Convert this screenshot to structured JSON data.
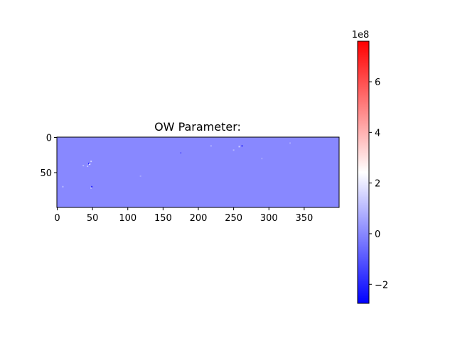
{
  "chart_data": {
    "type": "heatmap",
    "title": "OW Parameter:",
    "xlabel": "",
    "ylabel": "",
    "image_shape": [
      100,
      400
    ],
    "xlim": [
      -0.5,
      399.5
    ],
    "ylim": [
      99.5,
      -0.5
    ],
    "x_ticks": [
      0,
      50,
      100,
      150,
      200,
      250,
      300,
      350
    ],
    "x_tick_labels": [
      "0",
      "50",
      "100",
      "150",
      "200",
      "250",
      "300",
      "350"
    ],
    "y_ticks": [
      0,
      50
    ],
    "y_tick_labels": [
      "0",
      "50"
    ],
    "background_value": 0,
    "colormap": "bwr",
    "colorbar": {
      "vmin": -2.75,
      "vmax": 7.6,
      "scale_label": "1e8",
      "ticks": [
        -2,
        0,
        2,
        4,
        6
      ],
      "tick_labels": [
        "−2",
        "0",
        "2",
        "4",
        "6"
      ],
      "colors": [
        "#0000ff",
        "#ffffff",
        "#ff0000"
      ]
    },
    "features": [
      {
        "x": 45,
        "y": 37,
        "value": -2.5
      },
      {
        "x": 46,
        "y": 38,
        "value": 2.0
      },
      {
        "x": 48,
        "y": 34,
        "value": 1.5
      },
      {
        "x": 43,
        "y": 41,
        "value": 1.2
      },
      {
        "x": 49,
        "y": 70,
        "value": -2.0
      },
      {
        "x": 48,
        "y": 72,
        "value": 1.0
      },
      {
        "x": 8,
        "y": 70,
        "value": 1.0
      },
      {
        "x": 258,
        "y": 13,
        "value": 1.5
      },
      {
        "x": 262,
        "y": 12,
        "value": -1.8
      },
      {
        "x": 250,
        "y": 18,
        "value": 0.9
      },
      {
        "x": 218,
        "y": 12,
        "value": 0.8
      },
      {
        "x": 330,
        "y": 8,
        "value": 0.7
      },
      {
        "x": 37,
        "y": 40,
        "value": 0.9
      },
      {
        "x": 118,
        "y": 55,
        "value": 0.6
      },
      {
        "x": 175,
        "y": 22,
        "value": -0.8
      },
      {
        "x": 290,
        "y": 30,
        "value": 0.6
      }
    ]
  }
}
